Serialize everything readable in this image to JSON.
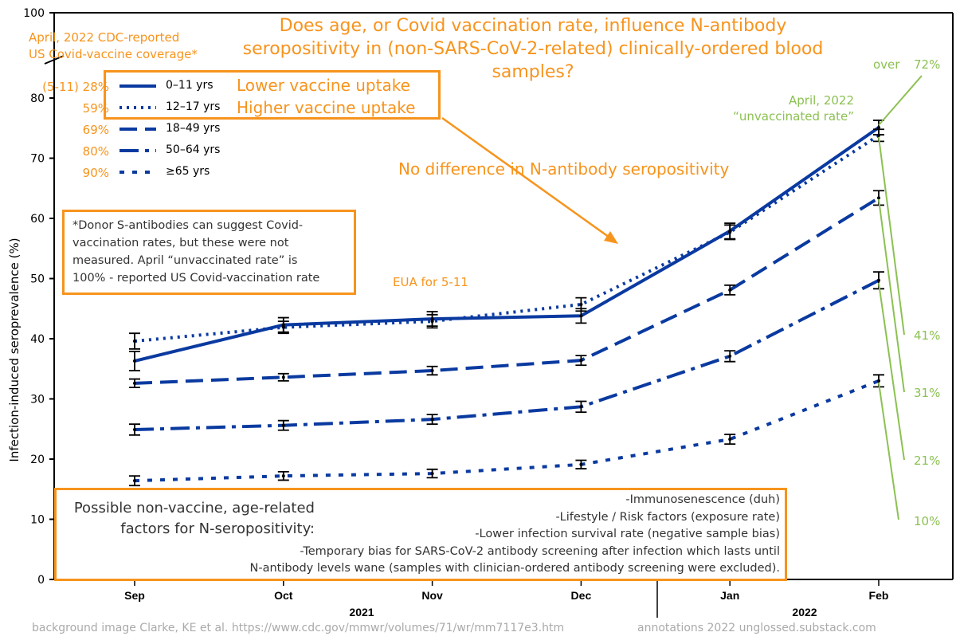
{
  "chart_data": {
    "type": "line",
    "title": "Does age, or Covid vaccination rate, influence N-antibody seropositivity in (non-SARS-CoV-2-related) clinically-ordered blood samples?",
    "ylabel": "Infection-induced seroprevalence (%)",
    "xlabel": "",
    "categories": [
      "Sep",
      "Oct",
      "Nov",
      "Dec",
      "Jan",
      "Feb"
    ],
    "years": [
      "2021",
      "2022"
    ],
    "yticks": [
      0,
      10,
      20,
      30,
      40,
      50,
      60,
      70,
      80,
      100
    ],
    "ylim": [
      0,
      100
    ],
    "grid": false,
    "legend_position": "top-left",
    "series": [
      {
        "name": "0–11 yrs",
        "style": "solid",
        "values": [
          36.3,
          42.3,
          43.3,
          43.8,
          57.9,
          75.1
        ],
        "err": [
          1.6,
          1.2,
          1.2,
          1.2,
          1.3,
          1.2
        ]
      },
      {
        "name": "12–17 yrs",
        "style": "dotted",
        "values": [
          39.6,
          41.9,
          42.9,
          45.7,
          57.7,
          73.8
        ],
        "err": [
          1.3,
          1.0,
          1.1,
          1.1,
          1.2,
          1.0
        ]
      },
      {
        "name": "18–49 yrs",
        "style": "dashed",
        "values": [
          32.6,
          33.6,
          34.7,
          36.4,
          48.1,
          63.4
        ],
        "err": [
          0.7,
          0.6,
          0.7,
          0.8,
          0.8,
          1.2
        ]
      },
      {
        "name": "50–64 yrs",
        "style": "dashdot",
        "values": [
          24.9,
          25.6,
          26.6,
          28.7,
          37.1,
          49.7
        ],
        "err": [
          0.9,
          0.8,
          0.8,
          0.9,
          0.9,
          1.4
        ]
      },
      {
        "name": "≥65 yrs",
        "style": "shortdash",
        "values": [
          16.4,
          17.2,
          17.6,
          19.1,
          23.3,
          33.0
        ],
        "err": [
          0.8,
          0.7,
          0.7,
          0.7,
          0.8,
          1.0
        ]
      }
    ],
    "color": "#0a3aa0"
  },
  "annotations": {
    "coverage_title": [
      "April, 2022 CDC-reported",
      "US Covid-vaccine coverage*"
    ],
    "coverage": [
      "(5-11) 28%",
      "59%",
      "69%",
      "80%",
      "90%"
    ],
    "lower": "Lower vaccine uptake",
    "higher": "Higher vaccine uptake",
    "no_diff": "No difference in N-antibody seropositivity",
    "eua": "EUA for 5-11",
    "unvax": [
      "April, 2022",
      "“unvaccinated rate”"
    ],
    "over": "over",
    "unvax_rates": [
      "72%",
      "41%",
      "31%",
      "21%",
      "10%"
    ],
    "note": [
      "*Donor S-antibodies can suggest Covid-",
      "vaccination rates, but these were not",
      "measured. April “unvaccinated rate” is",
      "100% - reported US Covid-vaccination rate"
    ],
    "factors_title": [
      "Possible non-vaccine, age-related",
      "factors for N-seropositivity:"
    ],
    "factors": [
      "-Immunosenescence (duh)",
      "-Lifestyle / Risk factors (exposure rate)",
      "-Lower infection survival rate (negative sample bias)",
      "-Temporary bias for SARS-CoV-2 antibody screening after infection which lasts until",
      "N-antibody levels wane (samples with clinician-ordered antibody screening were excluded)."
    ],
    "credit_left": "background image Clarke, KE et al. https://www.cdc.gov/mmwr/volumes/71/wr/mm7117e3.htm",
    "credit_right": "annotations 2022 unglossed.substack.com"
  }
}
